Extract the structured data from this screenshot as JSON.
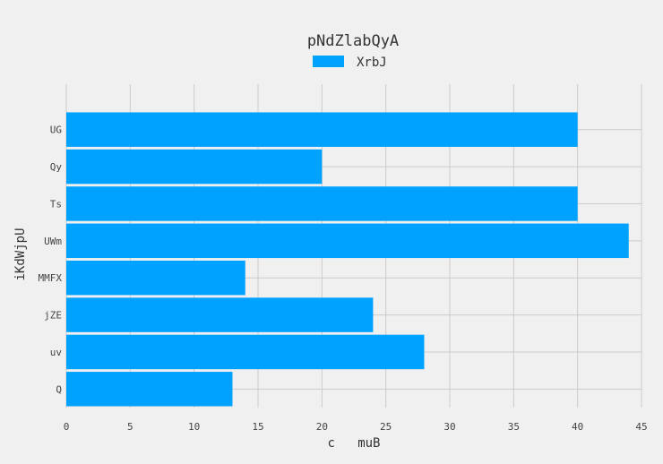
{
  "chart_data": {
    "type": "bar",
    "orientation": "horizontal",
    "title": "pNdZlabQyA",
    "xlabel": "c   muB",
    "ylabel": "iKdWjpU",
    "categories": [
      "UG",
      "Qy",
      "Ts",
      "UWm",
      "MMFX",
      "jZE",
      "uv",
      "Q"
    ],
    "series": [
      {
        "name": "XrbJ",
        "values": [
          40,
          20,
          40,
          44,
          14,
          24,
          28,
          13
        ],
        "color": "#00a2ff"
      }
    ],
    "xlim": [
      0,
      45
    ],
    "xticks": [
      0,
      5,
      10,
      15,
      20,
      25,
      30,
      35,
      40,
      45
    ],
    "grid": true,
    "legend_position": "top-center",
    "background": "#f0f0f0"
  }
}
